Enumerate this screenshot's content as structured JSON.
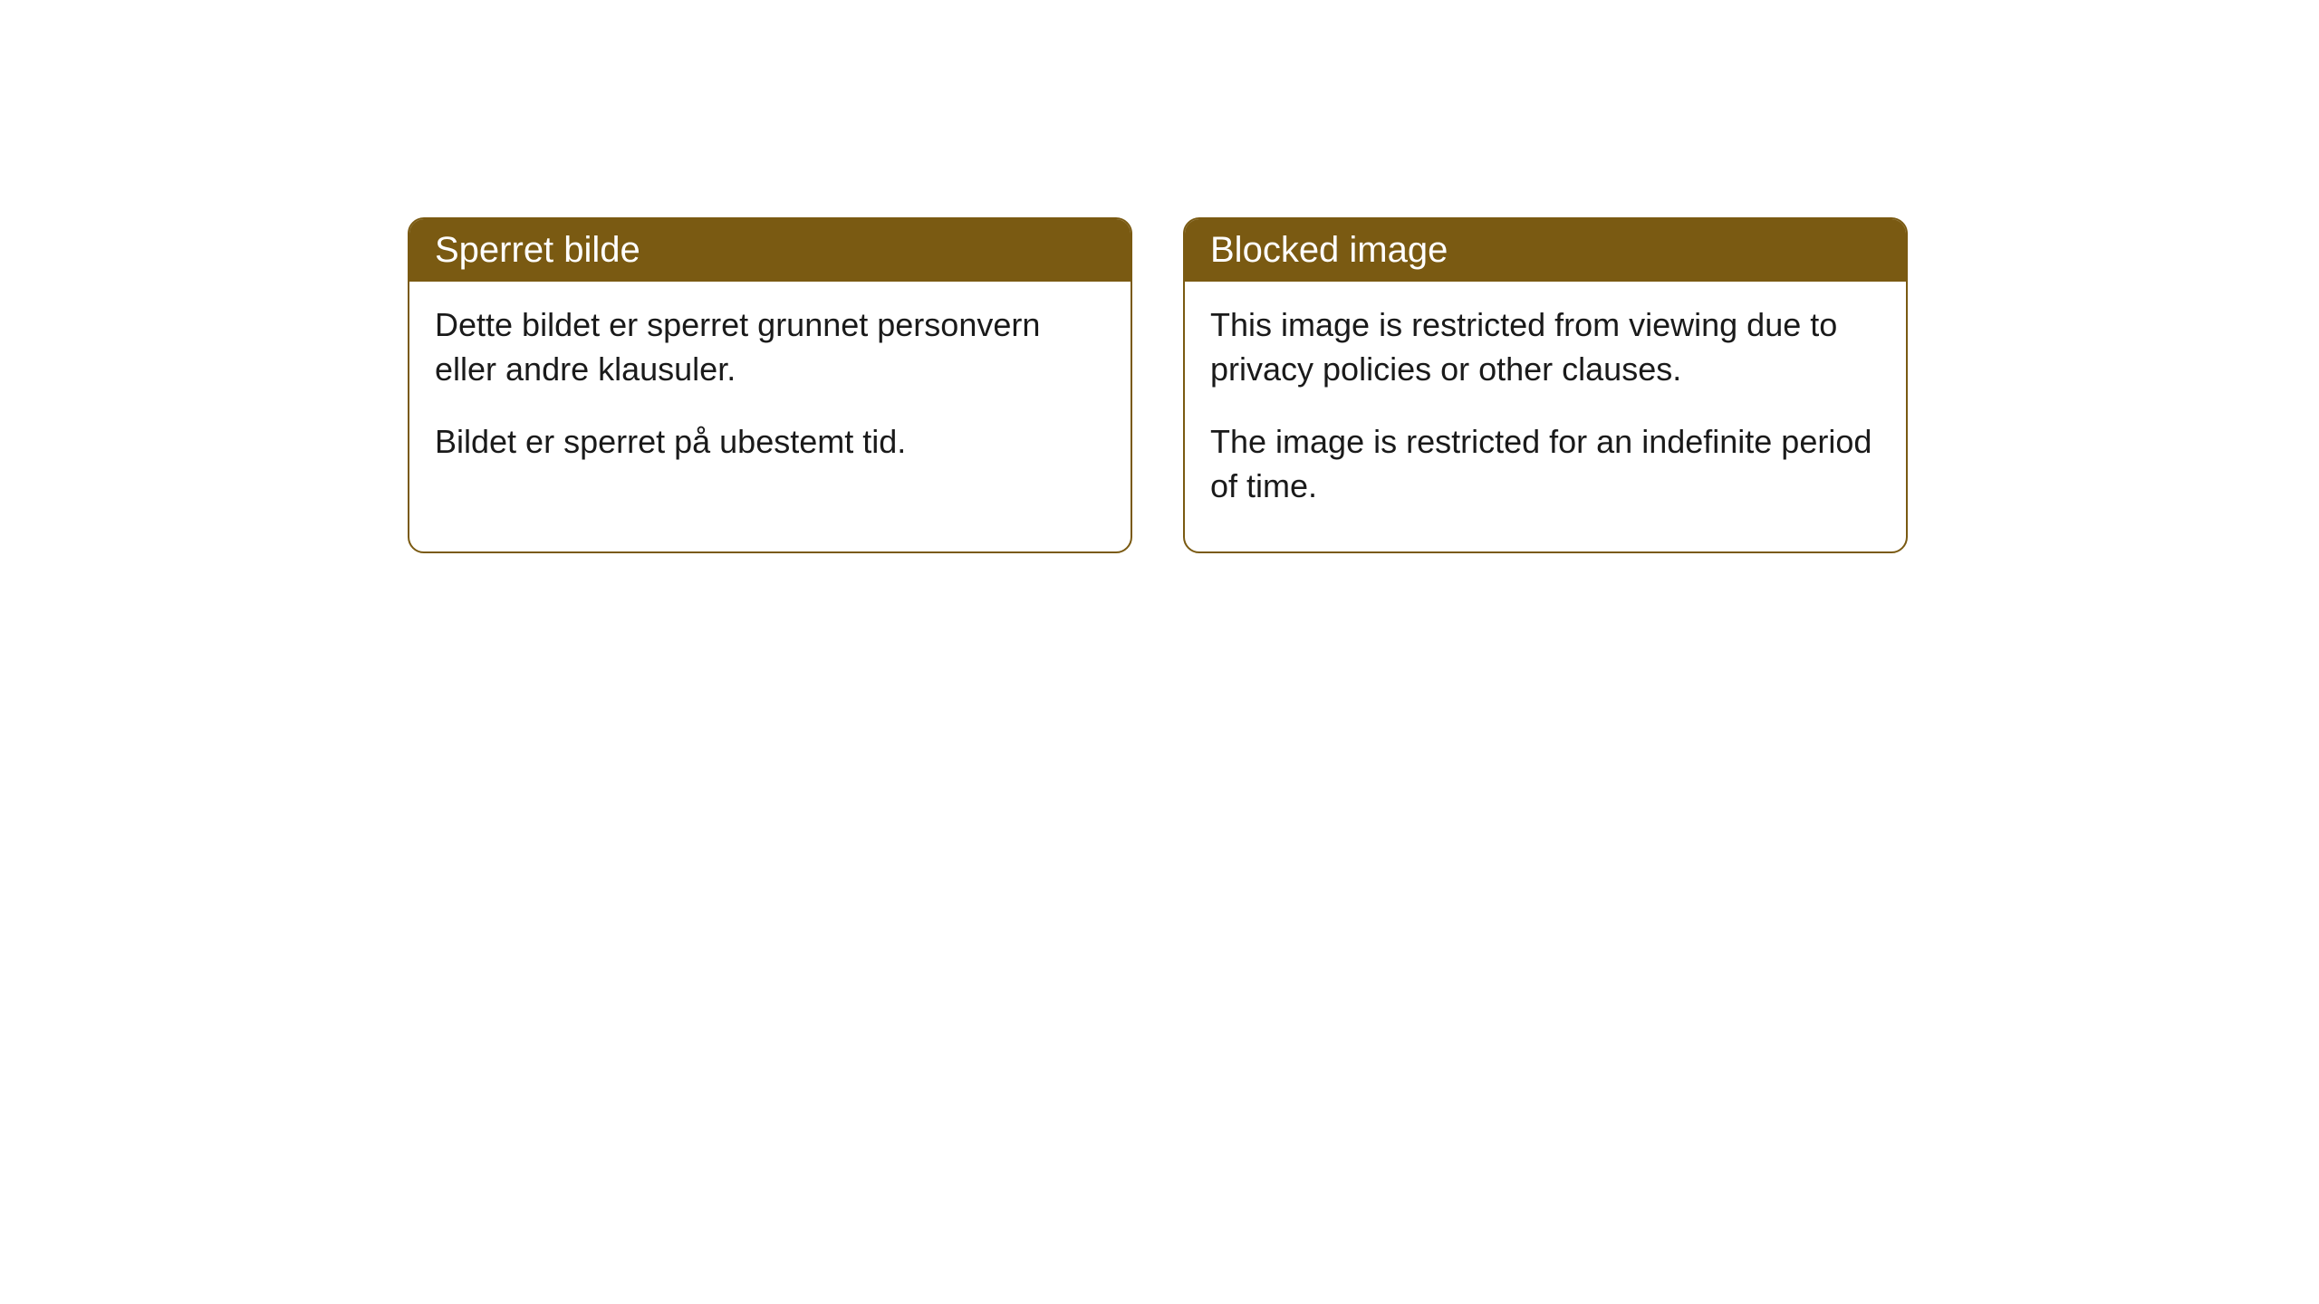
{
  "cards": [
    {
      "title": "Sperret bilde",
      "paragraph1": "Dette bildet er sperret grunnet personvern eller andre klausuler.",
      "paragraph2": "Bildet er sperret på ubestemt tid."
    },
    {
      "title": "Blocked image",
      "paragraph1": "This image is restricted from viewing due to privacy policies or other clauses.",
      "paragraph2": "The image is restricted for an indefinite period of time."
    }
  ],
  "styling": {
    "header_background": "#7a5a12",
    "header_text_color": "#ffffff",
    "card_border_color": "#7a5a12",
    "card_background": "#ffffff",
    "body_text_color": "#1a1a1a",
    "page_background": "#ffffff",
    "border_radius": 18,
    "title_fontsize": 40,
    "body_fontsize": 36
  }
}
